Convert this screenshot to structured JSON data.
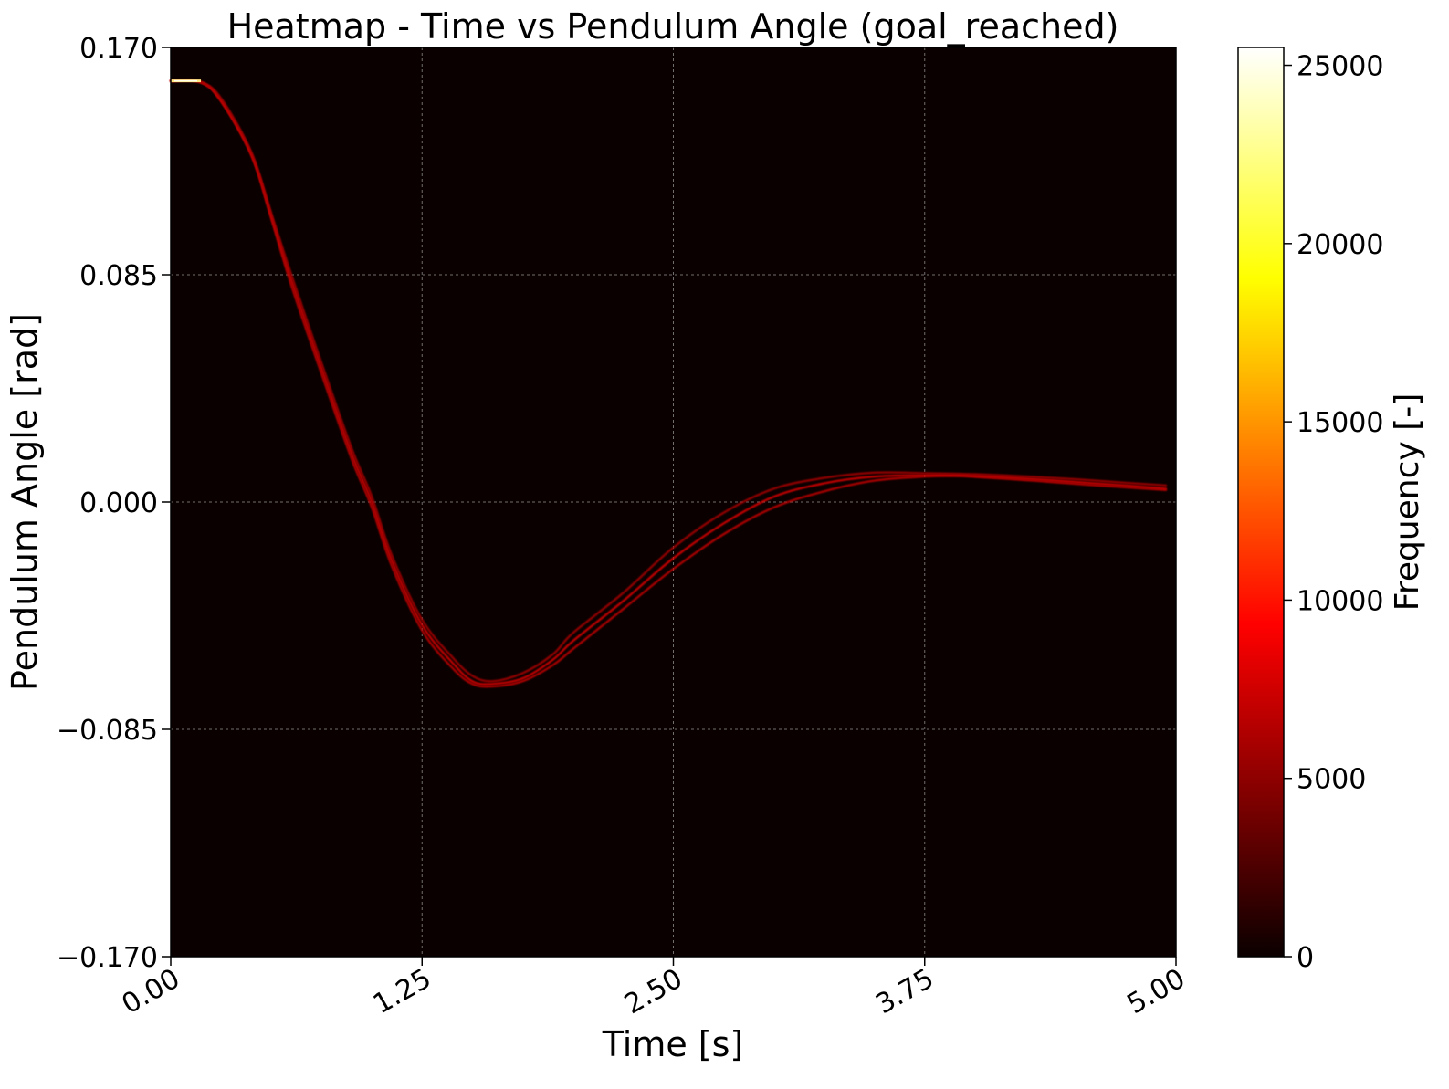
{
  "chart_data": {
    "type": "heatmap",
    "title": "Heatmap - Time vs Pendulum Angle (goal_reached)",
    "xlabel": "Time [s]",
    "ylabel": "Pendulum Angle [rad]",
    "xlim": [
      0.0,
      5.0
    ],
    "ylim": [
      -0.17,
      0.17
    ],
    "x_ticks": [
      "0.00",
      "1.25",
      "2.50",
      "3.75",
      "5.00"
    ],
    "x_tick_values": [
      0.0,
      1.25,
      2.5,
      3.75,
      5.0
    ],
    "y_ticks": [
      "0.170",
      "0.085",
      "0.000",
      "−0.085",
      "−0.170"
    ],
    "y_tick_values": [
      0.17,
      0.085,
      0.0,
      -0.085,
      -0.17
    ],
    "grid": true,
    "colormap": "hot",
    "background_color": "#0b0000",
    "colorbar": {
      "label": "Frequency [-]",
      "range": [
        0,
        25500
      ],
      "ticks": [
        "0",
        "5000",
        "10000",
        "15000",
        "20000",
        "25000"
      ],
      "tick_values": [
        0,
        5000,
        10000,
        15000,
        20000,
        25000
      ]
    },
    "hotspot": {
      "t_start": 0.0,
      "t_end": 0.15,
      "angle": 0.1575,
      "frequency": 25000
    },
    "series": [
      {
        "t": [
          0.0,
          0.15,
          0.25,
          0.4,
          0.5,
          0.6,
          0.75,
          0.9,
          1.0,
          1.1,
          1.25,
          1.4,
          1.5,
          1.6,
          1.75,
          1.9,
          2.0,
          2.25,
          2.5,
          2.75,
          3.0,
          3.25,
          3.5,
          3.75,
          3.9,
          4.0,
          4.25,
          4.5,
          4.75,
          4.95
        ],
        "angle": [
          0.1575,
          0.157,
          0.15,
          0.13,
          0.107,
          0.083,
          0.05,
          0.018,
          0.0,
          -0.022,
          -0.046,
          -0.06,
          -0.067,
          -0.068,
          -0.066,
          -0.059,
          -0.052,
          -0.037,
          -0.021,
          -0.008,
          0.002,
          0.007,
          0.0095,
          0.01,
          0.01,
          0.0098,
          0.0088,
          0.0075,
          0.0062,
          0.005
        ],
        "frequency": 8000
      },
      {
        "t": [
          0.0,
          0.15,
          0.25,
          0.4,
          0.5,
          0.6,
          0.75,
          0.9,
          1.0,
          1.1,
          1.25,
          1.4,
          1.5,
          1.6,
          1.75,
          1.9,
          2.0,
          2.25,
          2.5,
          2.75,
          3.0,
          3.25,
          3.5,
          3.75,
          3.9,
          4.0,
          4.25,
          4.5,
          4.75,
          4.95
        ],
        "angle": [
          0.1575,
          0.157,
          0.15,
          0.13,
          0.106,
          0.081,
          0.048,
          0.016,
          -0.002,
          -0.024,
          -0.048,
          -0.062,
          -0.068,
          -0.069,
          -0.067,
          -0.061,
          -0.055,
          -0.04,
          -0.025,
          -0.012,
          -0.002,
          0.004,
          0.008,
          0.0095,
          0.0097,
          0.0094,
          0.0082,
          0.0068,
          0.0055,
          0.0045
        ],
        "frequency": 7000
      },
      {
        "t": [
          0.0,
          0.15,
          0.25,
          0.4,
          0.5,
          0.6,
          0.75,
          0.9,
          1.0,
          1.1,
          1.25,
          1.4,
          1.5,
          1.6,
          1.75,
          1.9,
          2.0,
          2.25,
          2.5,
          2.75,
          3.0,
          3.25,
          3.5,
          3.75,
          3.9,
          4.0,
          4.25,
          4.5,
          4.75,
          4.95
        ],
        "angle": [
          0.1575,
          0.157,
          0.151,
          0.131,
          0.108,
          0.085,
          0.052,
          0.02,
          0.002,
          -0.02,
          -0.044,
          -0.058,
          -0.065,
          -0.067,
          -0.064,
          -0.057,
          -0.049,
          -0.034,
          -0.017,
          -0.004,
          0.005,
          0.009,
          0.011,
          0.0108,
          0.0106,
          0.0104,
          0.0096,
          0.0085,
          0.0072,
          0.0062
        ],
        "frequency": 6000
      }
    ]
  }
}
